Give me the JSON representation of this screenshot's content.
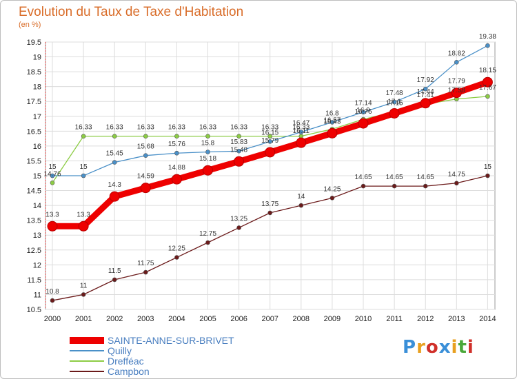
{
  "title": "Evolution du Taux de Taxe d'Habitation",
  "subtitle": "(en %)",
  "logo": {
    "text": "Proxiti",
    "letter_colors": [
      "#3a8fd8",
      "#e8a020",
      "#d0302a",
      "#3a8fd8",
      "#e8a020",
      "#4aa83a",
      "#d0302a"
    ]
  },
  "chart_data": {
    "type": "line",
    "x": [
      "2000",
      "2001",
      "2002",
      "2003",
      "2004",
      "2005",
      "2006",
      "2007",
      "2008",
      "2009",
      "2010",
      "2011",
      "2012",
      "2013",
      "2014"
    ],
    "y_ticks": [
      "10.5",
      "11",
      "11.5",
      "12",
      "12.5",
      "13",
      "13.5",
      "14",
      "14.5",
      "15",
      "15.5",
      "16",
      "16.5",
      "17",
      "17.5",
      "18",
      "18.5",
      "19",
      "19.5"
    ],
    "ylim": [
      10.5,
      19.5
    ],
    "grid": true,
    "legend_position": "bottom-left",
    "series": [
      {
        "name": "SAINTE-ANNE-SUR-BRIVET",
        "color": "#ee0000",
        "values": [
          13.3,
          13.3,
          14.3,
          14.59,
          14.88,
          15.18,
          15.48,
          15.79,
          16.11,
          16.43,
          16.76,
          17.1,
          17.44,
          17.79,
          18.15
        ],
        "labels": [
          "13.3",
          "13.3",
          "14.3",
          "14.59",
          "14.88",
          "15.18",
          "15.48",
          "15.79",
          "16.11",
          "16.43",
          "16.76",
          "17.1",
          "17.44",
          "17.79",
          "18.15"
        ]
      },
      {
        "name": "Quilly",
        "color": "#4a90c8",
        "values": [
          15,
          15,
          15.45,
          15.68,
          15.76,
          15.8,
          15.83,
          16.15,
          16.47,
          16.8,
          17.14,
          17.48,
          17.92,
          18.82,
          19.38
        ],
        "labels": [
          "15",
          "15",
          "15.45",
          "15.68",
          "15.76",
          "15.8",
          "15.83",
          "16.15",
          "16.47",
          "16.8",
          "17.14",
          "17.48",
          "17.92",
          "18.82",
          "19.38"
        ]
      },
      {
        "name": "Drefféac",
        "color": "#8ccc44",
        "values": [
          14.76,
          16.33,
          16.33,
          16.33,
          16.33,
          16.33,
          16.33,
          16.33,
          16.33,
          16.57,
          16.9,
          17.15,
          17.41,
          17.58,
          17.67
        ],
        "labels": [
          "14.76",
          "16.33",
          "16.33",
          "16.33",
          "16.33",
          "16.33",
          "16.33",
          "16.33",
          "16.33",
          "16.57",
          "16.9",
          "17.15",
          "17.41",
          "17.58",
          "17.67"
        ]
      },
      {
        "name": "Campbon",
        "color": "#6b1a1a",
        "values": [
          10.8,
          11,
          11.5,
          11.75,
          12.25,
          12.75,
          13.25,
          13.75,
          14,
          14.25,
          14.65,
          14.65,
          14.65,
          14.75,
          15
        ],
        "labels": [
          "10.8",
          "11",
          "11.5",
          "11.75",
          "12.25",
          "12.75",
          "13.25",
          "13.75",
          "14",
          "14.25",
          "14.65",
          "14.65",
          "14.65",
          "14.75",
          "15"
        ]
      }
    ]
  }
}
